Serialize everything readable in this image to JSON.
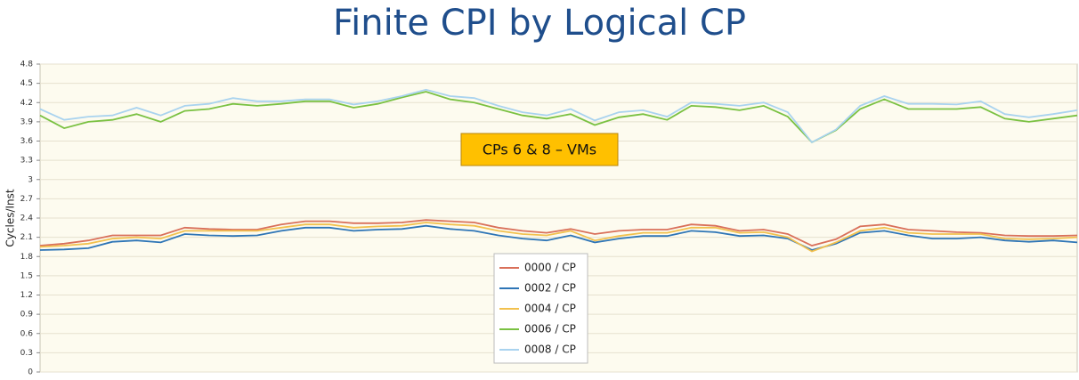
{
  "chart_data": {
    "type": "line",
    "title": "Finite CPI by Logical CP",
    "y_label": "Cycles/Inst",
    "annotation": "CPs 6 & 8 – VMs",
    "categories": [
      null,
      null,
      null,
      null,
      null,
      null,
      null,
      null,
      null,
      null,
      null,
      null,
      null,
      null,
      null,
      null,
      null,
      null,
      null,
      null,
      null,
      null,
      null,
      null,
      null,
      null,
      null,
      null,
      null,
      null,
      null,
      null,
      null,
      null,
      null,
      null,
      null,
      null,
      null,
      null,
      null,
      null,
      null,
      null
    ],
    "ylim": [
      0,
      4.8
    ],
    "yticks": [
      0,
      0.3,
      0.6,
      0.9,
      1.2,
      1.5,
      1.8,
      2.1,
      2.4,
      2.7,
      3,
      3.3,
      3.6,
      3.9,
      4.2,
      4.5,
      4.8
    ],
    "grid": true,
    "legend": "bottom",
    "series": [
      {
        "name": "0000 / CP",
        "color": "#d9705a",
        "values": [
          1.97,
          2.0,
          2.05,
          2.13,
          2.13,
          2.13,
          2.25,
          2.23,
          2.22,
          2.22,
          2.3,
          2.35,
          2.35,
          2.32,
          2.32,
          2.33,
          2.37,
          2.35,
          2.33,
          2.25,
          2.2,
          2.17,
          2.23,
          2.15,
          2.2,
          2.22,
          2.22,
          2.3,
          2.28,
          2.2,
          2.22,
          2.15,
          1.97,
          2.07,
          2.27,
          2.3,
          2.22,
          2.2,
          2.18,
          2.17,
          2.13,
          2.12,
          2.12,
          2.13
        ]
      },
      {
        "name": "0002 / CP",
        "color": "#2e75b6",
        "values": [
          1.9,
          1.91,
          1.93,
          2.03,
          2.05,
          2.02,
          2.15,
          2.13,
          2.12,
          2.13,
          2.2,
          2.25,
          2.25,
          2.2,
          2.22,
          2.23,
          2.28,
          2.23,
          2.2,
          2.13,
          2.08,
          2.05,
          2.13,
          2.02,
          2.08,
          2.12,
          2.12,
          2.2,
          2.18,
          2.12,
          2.13,
          2.08,
          1.9,
          2.0,
          2.17,
          2.2,
          2.13,
          2.08,
          2.08,
          2.1,
          2.05,
          2.03,
          2.05,
          2.02
        ]
      },
      {
        "name": "0004 / CP",
        "color": "#f2c14e",
        "values": [
          1.95,
          1.97,
          2.0,
          2.08,
          2.1,
          2.08,
          2.2,
          2.2,
          2.2,
          2.2,
          2.25,
          2.3,
          2.3,
          2.25,
          2.27,
          2.28,
          2.33,
          2.3,
          2.28,
          2.2,
          2.15,
          2.13,
          2.2,
          2.05,
          2.12,
          2.17,
          2.17,
          2.25,
          2.25,
          2.17,
          2.18,
          2.1,
          1.88,
          2.02,
          2.2,
          2.25,
          2.17,
          2.15,
          2.15,
          2.15,
          2.08,
          2.07,
          2.08,
          2.1
        ]
      },
      {
        "name": "0006 / CP",
        "color": "#7ac142",
        "values": [
          4.0,
          3.8,
          3.9,
          3.93,
          4.02,
          3.9,
          4.07,
          4.1,
          4.18,
          4.15,
          4.18,
          4.22,
          4.22,
          4.12,
          4.18,
          4.28,
          4.37,
          4.25,
          4.2,
          4.1,
          4.0,
          3.95,
          4.02,
          3.85,
          3.97,
          4.02,
          3.93,
          4.15,
          4.13,
          4.08,
          4.15,
          3.98,
          3.58,
          3.77,
          4.1,
          4.25,
          4.1,
          4.1,
          4.1,
          4.13,
          3.95,
          3.9,
          3.95,
          4.0
        ]
      },
      {
        "name": "0008 / CP",
        "color": "#a9d3ef",
        "values": [
          4.1,
          3.93,
          3.98,
          4.0,
          4.12,
          4.0,
          4.15,
          4.18,
          4.27,
          4.22,
          4.22,
          4.25,
          4.25,
          4.17,
          4.22,
          4.3,
          4.4,
          4.3,
          4.27,
          4.15,
          4.05,
          4.0,
          4.1,
          3.92,
          4.05,
          4.08,
          3.98,
          4.2,
          4.18,
          4.15,
          4.2,
          4.05,
          3.58,
          3.78,
          4.15,
          4.3,
          4.18,
          4.18,
          4.17,
          4.22,
          4.02,
          3.97,
          4.02,
          4.08
        ]
      }
    ]
  }
}
